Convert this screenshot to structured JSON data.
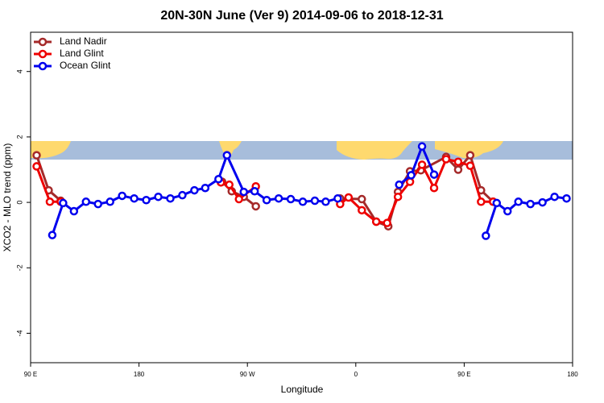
{
  "chart_data": {
    "type": "line",
    "title": "20N-30N June (Ver 9)   2014-09-06 to 2018-12-31",
    "xlabel": "Longitude",
    "ylabel": "XCO2 - MLO trend (ppm)",
    "xlim": [
      90,
      540
    ],
    "ylim": [
      -4.9,
      5.2
    ],
    "xticks": [
      {
        "value": 90,
        "label": "90 E"
      },
      {
        "value": 180,
        "label": "180"
      },
      {
        "value": 270,
        "label": "90 W"
      },
      {
        "value": 360,
        "label": "0"
      },
      {
        "value": 450,
        "label": "90 E"
      },
      {
        "value": 540,
        "label": "180"
      }
    ],
    "yticks": [
      -4,
      -2,
      0,
      2,
      4
    ],
    "grid": false,
    "legend": "top-left",
    "series": [
      {
        "name": "Land Nadir",
        "color": "#a52a2a",
        "x": [
          95,
          105,
          115,
          182,
          249,
          257,
          267,
          277,
          312,
          347,
          365,
          377,
          387,
          395,
          405,
          414,
          435,
          445,
          455,
          464,
          474
        ],
        "values": [
          1.44,
          0.37,
          0.05,
          null,
          0.63,
          0.34,
          0.17,
          -0.12,
          null,
          0.12,
          0.1,
          -0.59,
          -0.73,
          0.32,
          0.95,
          0.98,
          1.39,
          1.0,
          1.44,
          0.37,
          0.02
        ]
      },
      {
        "name": "Land Glint",
        "color": "#ee0000",
        "x": [
          95,
          106,
          115,
          182,
          248,
          255,
          263,
          277,
          312,
          347,
          354,
          365,
          377,
          386,
          395,
          405,
          415,
          425,
          435,
          445,
          455,
          464,
          474
        ],
        "values": [
          1.1,
          0.02,
          0.02,
          null,
          0.61,
          0.54,
          0.1,
          0.49,
          null,
          -0.05,
          0.15,
          -0.24,
          -0.59,
          -0.63,
          0.17,
          0.63,
          1.15,
          0.44,
          1.32,
          1.24,
          1.12,
          0.02,
          0.02
        ]
      },
      {
        "name": "Ocean Glint",
        "color": "#0000ee",
        "x": [
          108,
          117,
          126,
          136,
          146,
          156,
          166,
          176,
          186,
          196,
          206,
          216,
          226,
          235,
          246,
          253,
          267,
          276,
          286,
          296,
          306,
          316,
          326,
          335,
          345,
          355,
          396,
          406,
          415,
          425,
          435,
          468,
          477,
          486,
          495,
          505,
          515,
          525,
          535
        ],
        "values": [
          -1.0,
          -0.02,
          -0.27,
          0.02,
          -0.05,
          0.02,
          0.2,
          0.12,
          0.07,
          0.17,
          0.12,
          0.22,
          0.37,
          0.44,
          0.71,
          1.44,
          0.32,
          0.34,
          0.07,
          0.12,
          0.1,
          0.02,
          0.05,
          0.02,
          0.12,
          null,
          0.54,
          0.83,
          1.71,
          0.85,
          null,
          -1.02,
          -0.02,
          -0.27,
          0.02,
          -0.05,
          0.0,
          0.17,
          0.12
        ]
      }
    ]
  }
}
